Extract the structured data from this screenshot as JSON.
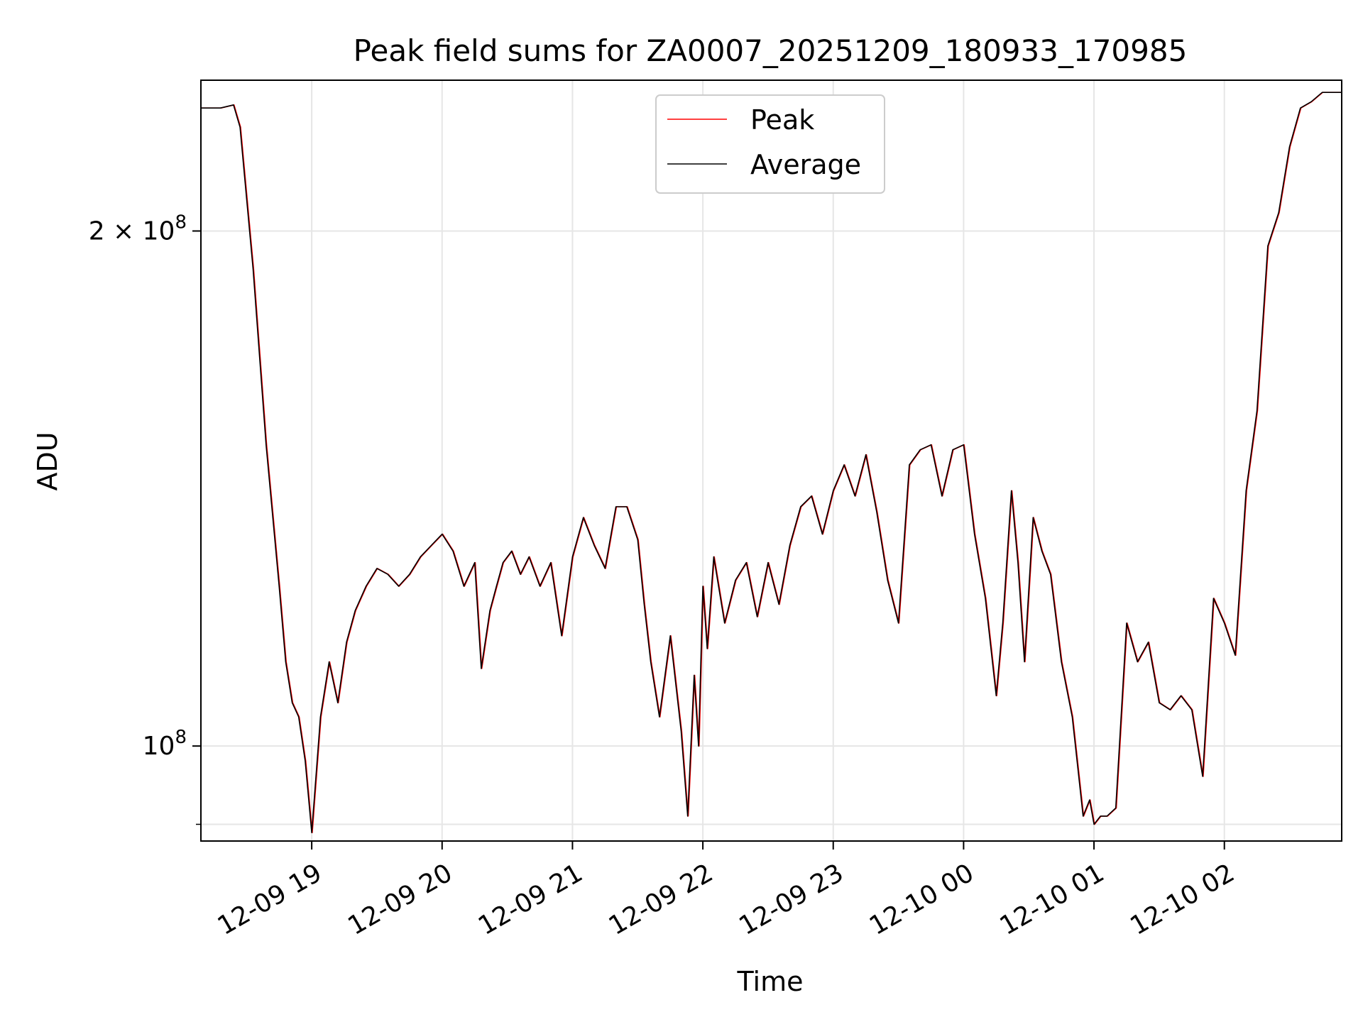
{
  "chart_data": {
    "type": "line",
    "title": "Peak field sums for ZA0007_20251209_180933_170985",
    "xlabel": "Time",
    "ylabel": "ADU",
    "y_scale": "log",
    "grid": true,
    "legend_position": "top-center",
    "xlim": [
      "12-09 18:09",
      "12-10 02:54"
    ],
    "ylim": [
      88000000,
      245000000
    ],
    "x_ticks": [
      "12-09 19",
      "12-09 20",
      "12-09 21",
      "12-09 22",
      "12-09 23",
      "12-10 00",
      "12-10 01",
      "12-10 02"
    ],
    "y_ticks": [
      {
        "value": 100000000,
        "label_base": "10",
        "label_exp": "8"
      },
      {
        "value": 200000000,
        "label_base": "2 × 10",
        "label_exp": "8"
      }
    ],
    "y_minor_ticks": [
      90000000
    ],
    "series": [
      {
        "name": "Peak",
        "color": "#ff0000",
        "x": [
          "12-09 18:09",
          "12-09 18:18",
          "12-09 18:24",
          "12-09 18:27",
          "12-09 18:33",
          "12-09 18:39",
          "12-09 18:45",
          "12-09 18:48",
          "12-09 18:51",
          "12-09 18:54",
          "12-09 18:57",
          "12-09 19:00",
          "12-09 19:04",
          "12-09 19:08",
          "12-09 19:12",
          "12-09 19:16",
          "12-09 19:20",
          "12-09 19:25",
          "12-09 19:30",
          "12-09 19:35",
          "12-09 19:40",
          "12-09 19:45",
          "12-09 19:50",
          "12-09 19:55",
          "12-09 20:00",
          "12-09 20:05",
          "12-09 20:10",
          "12-09 20:15",
          "12-09 20:18",
          "12-09 20:22",
          "12-09 20:25",
          "12-09 20:28",
          "12-09 20:32",
          "12-09 20:36",
          "12-09 20:40",
          "12-09 20:45",
          "12-09 20:50",
          "12-09 20:55",
          "12-09 21:00",
          "12-09 21:05",
          "12-09 21:10",
          "12-09 21:15",
          "12-09 21:20",
          "12-09 21:25",
          "12-09 21:30",
          "12-09 21:33",
          "12-09 21:36",
          "12-09 21:40",
          "12-09 21:45",
          "12-09 21:50",
          "12-09 21:53",
          "12-09 21:56",
          "12-09 21:58",
          "12-09 22:00",
          "12-09 22:02",
          "12-09 22:05",
          "12-09 22:10",
          "12-09 22:15",
          "12-09 22:20",
          "12-09 22:25",
          "12-09 22:30",
          "12-09 22:35",
          "12-09 22:40",
          "12-09 22:45",
          "12-09 22:50",
          "12-09 22:55",
          "12-09 23:00",
          "12-09 23:05",
          "12-09 23:10",
          "12-09 23:15",
          "12-09 23:20",
          "12-09 23:25",
          "12-09 23:30",
          "12-09 23:35",
          "12-09 23:40",
          "12-09 23:45",
          "12-09 23:50",
          "12-09 23:55",
          "12-10 00:00",
          "12-10 00:05",
          "12-10 00:10",
          "12-10 00:15",
          "12-10 00:18",
          "12-10 00:22",
          "12-10 00:25",
          "12-10 00:28",
          "12-10 00:32",
          "12-10 00:36",
          "12-10 00:40",
          "12-10 00:45",
          "12-10 00:50",
          "12-10 00:55",
          "12-10 00:58",
          "12-10 01:00",
          "12-10 01:03",
          "12-10 01:06",
          "12-10 01:10",
          "12-10 01:15",
          "12-10 01:20",
          "12-10 01:25",
          "12-10 01:30",
          "12-10 01:35",
          "12-10 01:40",
          "12-10 01:45",
          "12-10 01:50",
          "12-10 01:55",
          "12-10 02:00",
          "12-10 02:05",
          "12-10 02:10",
          "12-10 02:15",
          "12-10 02:20",
          "12-10 02:25",
          "12-10 02:30",
          "12-10 02:35",
          "12-10 02:40",
          "12-10 02:45",
          "12-10 02:50",
          "12-10 02:54"
        ],
        "values": [
          236000000,
          236000000,
          237000000,
          230000000,
          190000000,
          150000000,
          124000000,
          112000000,
          106000000,
          104000000,
          98000000,
          89000000,
          104000000,
          112000000,
          106000000,
          115000000,
          120000000,
          124000000,
          127000000,
          126000000,
          124000000,
          126000000,
          129000000,
          131000000,
          133000000,
          130000000,
          124000000,
          128000000,
          111000000,
          120000000,
          124000000,
          128000000,
          130000000,
          126000000,
          129000000,
          124000000,
          128000000,
          116000000,
          129000000,
          136000000,
          131000000,
          127000000,
          138000000,
          138000000,
          132000000,
          121000000,
          112000000,
          104000000,
          116000000,
          102000000,
          91000000,
          110000000,
          100000000,
          124000000,
          114000000,
          129000000,
          118000000,
          125000000,
          128000000,
          119000000,
          128000000,
          121000000,
          131000000,
          138000000,
          140000000,
          133000000,
          141000000,
          146000000,
          140000000,
          148000000,
          137000000,
          125000000,
          118000000,
          146000000,
          149000000,
          150000000,
          140000000,
          149000000,
          150000000,
          133000000,
          122000000,
          107000000,
          118000000,
          141000000,
          128000000,
          112000000,
          136000000,
          130000000,
          126000000,
          112000000,
          104000000,
          91000000,
          93000000,
          90000000,
          91000000,
          91000000,
          92000000,
          118000000,
          112000000,
          115000000,
          106000000,
          105000000,
          107000000,
          105000000,
          96000000,
          122000000,
          118000000,
          113000000,
          141000000,
          157000000,
          196000000,
          205000000,
          224000000,
          236000000,
          238000000,
          241000000,
          241000000,
          241000000
        ]
      },
      {
        "name": "Average",
        "color": "#000000",
        "x": [
          "12-09 18:09",
          "12-09 18:18",
          "12-09 18:24",
          "12-09 18:27",
          "12-09 18:33",
          "12-09 18:39",
          "12-09 18:45",
          "12-09 18:48",
          "12-09 18:51",
          "12-09 18:54",
          "12-09 18:57",
          "12-09 19:00",
          "12-09 19:04",
          "12-09 19:08",
          "12-09 19:12",
          "12-09 19:16",
          "12-09 19:20",
          "12-09 19:25",
          "12-09 19:30",
          "12-09 19:35",
          "12-09 19:40",
          "12-09 19:45",
          "12-09 19:50",
          "12-09 19:55",
          "12-09 20:00",
          "12-09 20:05",
          "12-09 20:10",
          "12-09 20:15",
          "12-09 20:18",
          "12-09 20:22",
          "12-09 20:25",
          "12-09 20:28",
          "12-09 20:32",
          "12-09 20:36",
          "12-09 20:40",
          "12-09 20:45",
          "12-09 20:50",
          "12-09 20:55",
          "12-09 21:00",
          "12-09 21:05",
          "12-09 21:10",
          "12-09 21:15",
          "12-09 21:20",
          "12-09 21:25",
          "12-09 21:30",
          "12-09 21:33",
          "12-09 21:36",
          "12-09 21:40",
          "12-09 21:45",
          "12-09 21:50",
          "12-09 21:53",
          "12-09 21:56",
          "12-09 21:58",
          "12-09 22:00",
          "12-09 22:02",
          "12-09 22:05",
          "12-09 22:10",
          "12-09 22:15",
          "12-09 22:20",
          "12-09 22:25",
          "12-09 22:30",
          "12-09 22:35",
          "12-09 22:40",
          "12-09 22:45",
          "12-09 22:50",
          "12-09 22:55",
          "12-09 23:00",
          "12-09 23:05",
          "12-09 23:10",
          "12-09 23:15",
          "12-09 23:20",
          "12-09 23:25",
          "12-09 23:30",
          "12-09 23:35",
          "12-09 23:40",
          "12-09 23:45",
          "12-09 23:50",
          "12-09 23:55",
          "12-10 00:00",
          "12-10 00:05",
          "12-10 00:10",
          "12-10 00:15",
          "12-10 00:18",
          "12-10 00:22",
          "12-10 00:25",
          "12-10 00:28",
          "12-10 00:32",
          "12-10 00:36",
          "12-10 00:40",
          "12-10 00:45",
          "12-10 00:50",
          "12-10 00:55",
          "12-10 00:58",
          "12-10 01:00",
          "12-10 01:03",
          "12-10 01:06",
          "12-10 01:10",
          "12-10 01:15",
          "12-10 01:20",
          "12-10 01:25",
          "12-10 01:30",
          "12-10 01:35",
          "12-10 01:40",
          "12-10 01:45",
          "12-10 01:50",
          "12-10 01:55",
          "12-10 02:00",
          "12-10 02:05",
          "12-10 02:10",
          "12-10 02:15",
          "12-10 02:20",
          "12-10 02:25",
          "12-10 02:30",
          "12-10 02:35",
          "12-10 02:40",
          "12-10 02:45",
          "12-10 02:50",
          "12-10 02:54"
        ],
        "values": [
          236000000,
          236000000,
          237000000,
          230000000,
          190000000,
          150000000,
          124000000,
          112000000,
          106000000,
          104000000,
          98000000,
          89000000,
          104000000,
          112000000,
          106000000,
          115000000,
          120000000,
          124000000,
          127000000,
          126000000,
          124000000,
          126000000,
          129000000,
          131000000,
          133000000,
          130000000,
          124000000,
          128000000,
          111000000,
          120000000,
          124000000,
          128000000,
          130000000,
          126000000,
          129000000,
          124000000,
          128000000,
          116000000,
          129000000,
          136000000,
          131000000,
          127000000,
          138000000,
          138000000,
          132000000,
          121000000,
          112000000,
          104000000,
          116000000,
          102000000,
          91000000,
          110000000,
          100000000,
          124000000,
          114000000,
          129000000,
          118000000,
          125000000,
          128000000,
          119000000,
          128000000,
          121000000,
          131000000,
          138000000,
          140000000,
          133000000,
          141000000,
          146000000,
          140000000,
          148000000,
          137000000,
          125000000,
          118000000,
          146000000,
          149000000,
          150000000,
          140000000,
          149000000,
          150000000,
          133000000,
          122000000,
          107000000,
          118000000,
          141000000,
          128000000,
          112000000,
          136000000,
          130000000,
          126000000,
          112000000,
          104000000,
          91000000,
          93000000,
          90000000,
          91000000,
          91000000,
          92000000,
          118000000,
          112000000,
          115000000,
          106000000,
          105000000,
          107000000,
          105000000,
          96000000,
          122000000,
          118000000,
          113000000,
          141000000,
          157000000,
          196000000,
          205000000,
          224000000,
          236000000,
          238000000,
          241000000,
          241000000,
          241000000
        ]
      }
    ]
  }
}
